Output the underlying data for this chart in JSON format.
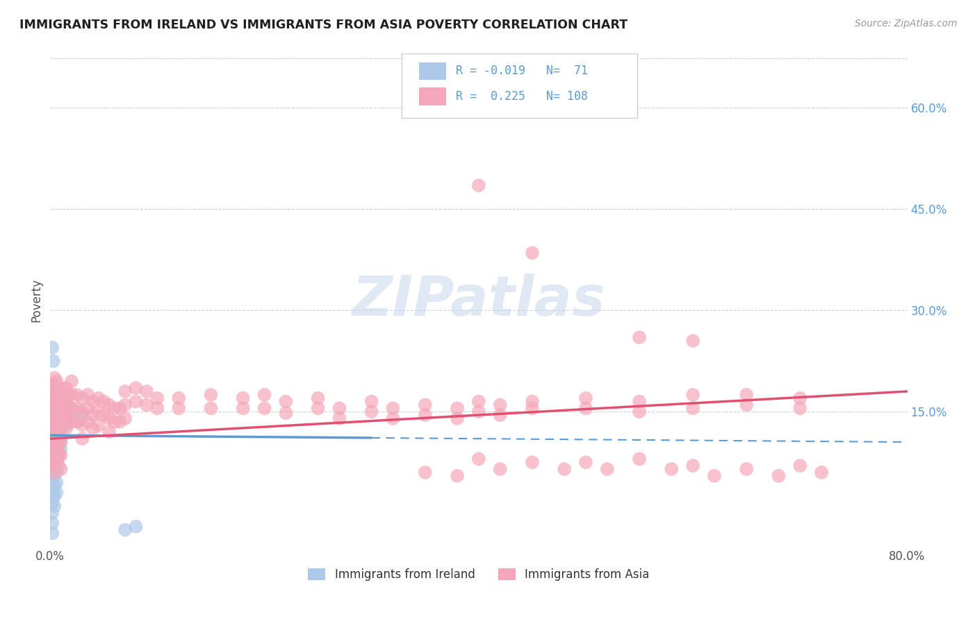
{
  "title": "IMMIGRANTS FROM IRELAND VS IMMIGRANTS FROM ASIA POVERTY CORRELATION CHART",
  "source": "Source: ZipAtlas.com",
  "ylabel": "Poverty",
  "legend_labels": [
    "Immigrants from Ireland",
    "Immigrants from Asia"
  ],
  "R_ireland": -0.019,
  "N_ireland": 71,
  "R_asia": 0.225,
  "N_asia": 108,
  "color_ireland": "#adc8e8",
  "color_ireland_line": "#5b9bd5",
  "color_asia": "#f4a7b9",
  "color_asia_line": "#e05070",
  "background_color": "#ffffff",
  "grid_color": "#d0d0d0",
  "watermark": "ZIPatlas",
  "title_color": "#1f1f1f",
  "right_tick_color": "#5b9bd5",
  "xlim": [
    0.0,
    0.8
  ],
  "ylim": [
    -0.05,
    0.68
  ],
  "ireland_scatter": [
    [
      0.002,
      0.175
    ],
    [
      0.002,
      0.155
    ],
    [
      0.002,
      0.135
    ],
    [
      0.002,
      0.12
    ],
    [
      0.002,
      0.105
    ],
    [
      0.002,
      0.09
    ],
    [
      0.002,
      0.075
    ],
    [
      0.002,
      0.06
    ],
    [
      0.002,
      0.045
    ],
    [
      0.002,
      0.03
    ],
    [
      0.002,
      0.015
    ],
    [
      0.002,
      0.0
    ],
    [
      0.002,
      -0.015
    ],
    [
      0.002,
      -0.03
    ],
    [
      0.004,
      0.19
    ],
    [
      0.004,
      0.17
    ],
    [
      0.004,
      0.15
    ],
    [
      0.004,
      0.13
    ],
    [
      0.004,
      0.115
    ],
    [
      0.004,
      0.1
    ],
    [
      0.004,
      0.085
    ],
    [
      0.004,
      0.07
    ],
    [
      0.004,
      0.055
    ],
    [
      0.004,
      0.04
    ],
    [
      0.004,
      0.025
    ],
    [
      0.004,
      0.01
    ],
    [
      0.006,
      0.18
    ],
    [
      0.006,
      0.165
    ],
    [
      0.006,
      0.15
    ],
    [
      0.006,
      0.135
    ],
    [
      0.006,
      0.12
    ],
    [
      0.006,
      0.105
    ],
    [
      0.006,
      0.09
    ],
    [
      0.006,
      0.075
    ],
    [
      0.006,
      0.06
    ],
    [
      0.006,
      0.045
    ],
    [
      0.006,
      0.03
    ],
    [
      0.008,
      0.175
    ],
    [
      0.008,
      0.16
    ],
    [
      0.008,
      0.145
    ],
    [
      0.008,
      0.13
    ],
    [
      0.008,
      0.115
    ],
    [
      0.008,
      0.1
    ],
    [
      0.008,
      0.085
    ],
    [
      0.008,
      0.07
    ],
    [
      0.01,
      0.17
    ],
    [
      0.01,
      0.155
    ],
    [
      0.01,
      0.14
    ],
    [
      0.01,
      0.125
    ],
    [
      0.01,
      0.11
    ],
    [
      0.01,
      0.095
    ],
    [
      0.012,
      0.165
    ],
    [
      0.012,
      0.15
    ],
    [
      0.012,
      0.135
    ],
    [
      0.015,
      0.16
    ],
    [
      0.015,
      0.145
    ],
    [
      0.015,
      0.13
    ],
    [
      0.02,
      0.155
    ],
    [
      0.02,
      0.14
    ],
    [
      0.025,
      0.15
    ],
    [
      0.025,
      0.135
    ],
    [
      0.03,
      0.145
    ],
    [
      0.002,
      0.245
    ],
    [
      0.003,
      0.225
    ],
    [
      0.07,
      -0.025
    ],
    [
      0.08,
      -0.02
    ]
  ],
  "asia_scatter": [
    [
      0.002,
      0.19
    ],
    [
      0.002,
      0.17
    ],
    [
      0.002,
      0.15
    ],
    [
      0.002,
      0.13
    ],
    [
      0.002,
      0.11
    ],
    [
      0.002,
      0.09
    ],
    [
      0.002,
      0.07
    ],
    [
      0.004,
      0.2
    ],
    [
      0.004,
      0.18
    ],
    [
      0.004,
      0.16
    ],
    [
      0.004,
      0.14
    ],
    [
      0.004,
      0.12
    ],
    [
      0.004,
      0.1
    ],
    [
      0.004,
      0.08
    ],
    [
      0.004,
      0.06
    ],
    [
      0.006,
      0.195
    ],
    [
      0.006,
      0.175
    ],
    [
      0.006,
      0.155
    ],
    [
      0.006,
      0.135
    ],
    [
      0.006,
      0.115
    ],
    [
      0.006,
      0.095
    ],
    [
      0.006,
      0.075
    ],
    [
      0.008,
      0.185
    ],
    [
      0.008,
      0.165
    ],
    [
      0.008,
      0.145
    ],
    [
      0.008,
      0.125
    ],
    [
      0.008,
      0.105
    ],
    [
      0.008,
      0.085
    ],
    [
      0.01,
      0.185
    ],
    [
      0.01,
      0.165
    ],
    [
      0.01,
      0.145
    ],
    [
      0.01,
      0.125
    ],
    [
      0.01,
      0.105
    ],
    [
      0.01,
      0.085
    ],
    [
      0.01,
      0.065
    ],
    [
      0.012,
      0.175
    ],
    [
      0.012,
      0.155
    ],
    [
      0.012,
      0.135
    ],
    [
      0.015,
      0.185
    ],
    [
      0.015,
      0.165
    ],
    [
      0.015,
      0.145
    ],
    [
      0.015,
      0.125
    ],
    [
      0.018,
      0.175
    ],
    [
      0.018,
      0.155
    ],
    [
      0.018,
      0.135
    ],
    [
      0.02,
      0.195
    ],
    [
      0.02,
      0.175
    ],
    [
      0.02,
      0.155
    ],
    [
      0.02,
      0.135
    ],
    [
      0.025,
      0.175
    ],
    [
      0.025,
      0.155
    ],
    [
      0.025,
      0.135
    ],
    [
      0.03,
      0.17
    ],
    [
      0.03,
      0.15
    ],
    [
      0.03,
      0.13
    ],
    [
      0.03,
      0.11
    ],
    [
      0.035,
      0.175
    ],
    [
      0.035,
      0.155
    ],
    [
      0.035,
      0.135
    ],
    [
      0.04,
      0.165
    ],
    [
      0.04,
      0.145
    ],
    [
      0.04,
      0.125
    ],
    [
      0.045,
      0.17
    ],
    [
      0.045,
      0.15
    ],
    [
      0.045,
      0.13
    ],
    [
      0.05,
      0.165
    ],
    [
      0.05,
      0.145
    ],
    [
      0.055,
      0.16
    ],
    [
      0.055,
      0.14
    ],
    [
      0.055,
      0.12
    ],
    [
      0.06,
      0.155
    ],
    [
      0.06,
      0.135
    ],
    [
      0.065,
      0.155
    ],
    [
      0.065,
      0.135
    ],
    [
      0.07,
      0.18
    ],
    [
      0.07,
      0.16
    ],
    [
      0.07,
      0.14
    ],
    [
      0.08,
      0.185
    ],
    [
      0.08,
      0.165
    ],
    [
      0.09,
      0.18
    ],
    [
      0.09,
      0.16
    ],
    [
      0.1,
      0.17
    ],
    [
      0.1,
      0.155
    ],
    [
      0.12,
      0.17
    ],
    [
      0.12,
      0.155
    ],
    [
      0.15,
      0.175
    ],
    [
      0.15,
      0.155
    ],
    [
      0.18,
      0.17
    ],
    [
      0.18,
      0.155
    ],
    [
      0.2,
      0.175
    ],
    [
      0.2,
      0.155
    ],
    [
      0.22,
      0.165
    ],
    [
      0.22,
      0.148
    ],
    [
      0.25,
      0.17
    ],
    [
      0.25,
      0.155
    ],
    [
      0.27,
      0.155
    ],
    [
      0.27,
      0.14
    ],
    [
      0.3,
      0.165
    ],
    [
      0.3,
      0.15
    ],
    [
      0.32,
      0.155
    ],
    [
      0.32,
      0.14
    ],
    [
      0.35,
      0.16
    ],
    [
      0.35,
      0.145
    ],
    [
      0.38,
      0.155
    ],
    [
      0.38,
      0.14
    ],
    [
      0.4,
      0.165
    ],
    [
      0.4,
      0.15
    ],
    [
      0.42,
      0.16
    ],
    [
      0.42,
      0.145
    ],
    [
      0.45,
      0.165
    ],
    [
      0.45,
      0.155
    ],
    [
      0.5,
      0.17
    ],
    [
      0.5,
      0.155
    ],
    [
      0.55,
      0.165
    ],
    [
      0.55,
      0.15
    ],
    [
      0.6,
      0.175
    ],
    [
      0.6,
      0.155
    ],
    [
      0.65,
      0.175
    ],
    [
      0.65,
      0.16
    ],
    [
      0.7,
      0.17
    ],
    [
      0.7,
      0.155
    ],
    [
      0.35,
      0.595
    ],
    [
      0.4,
      0.485
    ],
    [
      0.45,
      0.385
    ],
    [
      0.55,
      0.26
    ],
    [
      0.6,
      0.255
    ],
    [
      0.35,
      0.06
    ],
    [
      0.38,
      0.055
    ],
    [
      0.4,
      0.08
    ],
    [
      0.42,
      0.065
    ],
    [
      0.45,
      0.075
    ],
    [
      0.48,
      0.065
    ],
    [
      0.5,
      0.075
    ],
    [
      0.52,
      0.065
    ],
    [
      0.55,
      0.08
    ],
    [
      0.58,
      0.065
    ],
    [
      0.6,
      0.07
    ],
    [
      0.62,
      0.055
    ],
    [
      0.65,
      0.065
    ],
    [
      0.68,
      0.055
    ],
    [
      0.7,
      0.07
    ],
    [
      0.72,
      0.06
    ]
  ]
}
